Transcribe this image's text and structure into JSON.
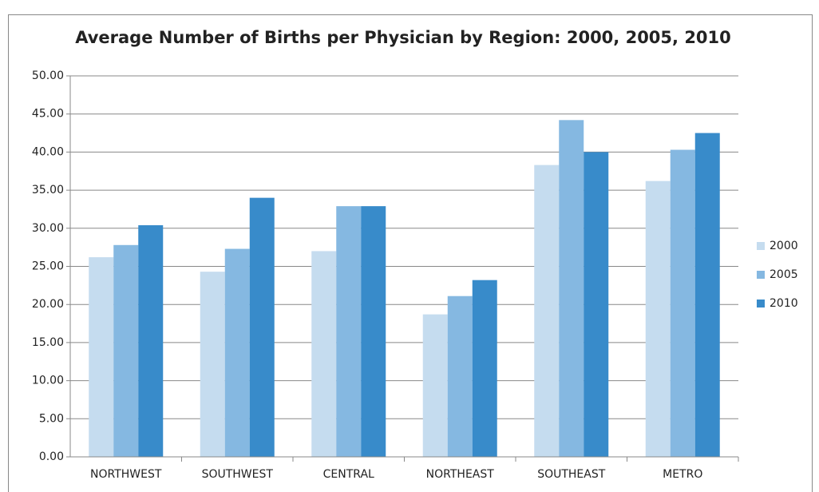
{
  "chart_data": {
    "type": "bar",
    "title": "Average Number of Births per Physician by Region: 2000, 2005, 2010",
    "categories": [
      "NORTHWEST",
      "SOUTHWEST",
      "CENTRAL",
      "NORTHEAST",
      "SOUTHEAST",
      "METRO"
    ],
    "series": [
      {
        "name": "2000",
        "color": "#c5dcef",
        "values": [
          26.2,
          24.3,
          27.0,
          18.7,
          38.3,
          36.2
        ]
      },
      {
        "name": "2005",
        "color": "#85b8e1",
        "values": [
          27.8,
          27.3,
          32.9,
          21.1,
          44.2,
          40.3
        ]
      },
      {
        "name": "2010",
        "color": "#388bca",
        "values": [
          30.4,
          34.0,
          32.9,
          23.2,
          40.0,
          42.5
        ]
      }
    ],
    "ylim": [
      0,
      50
    ],
    "yticks": [
      {
        "value": 0,
        "label": "0.00"
      },
      {
        "value": 5,
        "label": "5.00"
      },
      {
        "value": 10,
        "label": "10.00"
      },
      {
        "value": 15,
        "label": "15.00"
      },
      {
        "value": 20,
        "label": "20.00"
      },
      {
        "value": 25,
        "label": "25.00"
      },
      {
        "value": 30,
        "label": "30.00"
      },
      {
        "value": 35,
        "label": "35.00"
      },
      {
        "value": 40,
        "label": "40.00"
      },
      {
        "value": 45,
        "label": "45.00"
      },
      {
        "value": 50,
        "label": "50.00"
      }
    ],
    "grid": true,
    "legend": "right"
  }
}
